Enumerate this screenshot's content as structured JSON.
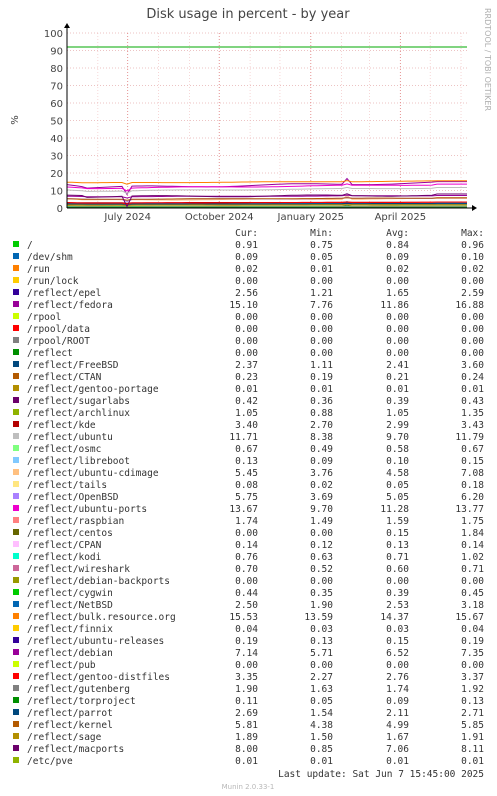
{
  "chart_data": {
    "type": "line",
    "title": "Disk usage in percent - by year",
    "ylabel": "%",
    "side_label": "RRDTOOL / TOBI OETIKER",
    "ylim": [
      0,
      100
    ],
    "yticks": [
      0,
      10,
      20,
      30,
      40,
      50,
      60,
      70,
      80,
      90,
      100
    ],
    "x_range": [
      "2024-05-01",
      "2025-06-07"
    ],
    "xticks": [
      {
        "label": "July 2024",
        "date": "2024-07-01"
      },
      {
        "label": "October 2024",
        "date": "2024-10-01"
      },
      {
        "label": "January 2025",
        "date": "2025-01-01"
      },
      {
        "label": "April 2025",
        "date": "2025-04-01"
      }
    ],
    "warning_line": 92,
    "grid": true,
    "columns": [
      "Cur:",
      "Min:",
      "Avg:",
      "Max:"
    ],
    "series": [
      {
        "name": "/",
        "color": "#00cc00",
        "values": [
          "0.91",
          "0.75",
          "0.84",
          "0.96"
        ]
      },
      {
        "name": "/dev/shm",
        "color": "#0066b3",
        "values": [
          "0.09",
          "0.05",
          "0.09",
          "0.10"
        ]
      },
      {
        "name": "/run",
        "color": "#ff8000",
        "values": [
          "0.02",
          "0.01",
          "0.02",
          "0.02"
        ]
      },
      {
        "name": "/run/lock",
        "color": "#ffcc00",
        "values": [
          "0.00",
          "0.00",
          "0.00",
          "0.00"
        ]
      },
      {
        "name": "/reflect/epel",
        "color": "#330099",
        "values": [
          "2.56",
          "1.21",
          "1.65",
          "2.59"
        ]
      },
      {
        "name": "/reflect/fedora",
        "color": "#990099",
        "values": [
          "15.10",
          "7.76",
          "11.86",
          "16.88"
        ]
      },
      {
        "name": "/rpool",
        "color": "#ccff00",
        "values": [
          "0.00",
          "0.00",
          "0.00",
          "0.00"
        ]
      },
      {
        "name": "/rpool/data",
        "color": "#ff0000",
        "values": [
          "0.00",
          "0.00",
          "0.00",
          "0.00"
        ]
      },
      {
        "name": "/rpool/ROOT",
        "color": "#808080",
        "values": [
          "0.00",
          "0.00",
          "0.00",
          "0.00"
        ]
      },
      {
        "name": "/reflect",
        "color": "#008f00",
        "values": [
          "0.00",
          "0.00",
          "0.00",
          "0.00"
        ]
      },
      {
        "name": "/reflect/FreeBSD",
        "color": "#00487d",
        "values": [
          "2.37",
          "1.11",
          "2.41",
          "3.60"
        ]
      },
      {
        "name": "/reflect/CTAN",
        "color": "#b35a00",
        "values": [
          "0.23",
          "0.19",
          "0.21",
          "0.24"
        ]
      },
      {
        "name": "/reflect/gentoo-portage",
        "color": "#b38f00",
        "values": [
          "0.01",
          "0.01",
          "0.01",
          "0.01"
        ]
      },
      {
        "name": "/reflect/sugarlabs",
        "color": "#6b006b",
        "values": [
          "0.42",
          "0.36",
          "0.39",
          "0.43"
        ]
      },
      {
        "name": "/reflect/archlinux",
        "color": "#8fb300",
        "values": [
          "1.05",
          "0.88",
          "1.05",
          "1.35"
        ]
      },
      {
        "name": "/reflect/kde",
        "color": "#b30000",
        "values": [
          "3.40",
          "2.70",
          "2.99",
          "3.43"
        ]
      },
      {
        "name": "/reflect/ubuntu",
        "color": "#bebebe",
        "values": [
          "11.71",
          "8.38",
          "9.70",
          "11.79"
        ]
      },
      {
        "name": "/reflect/osmc",
        "color": "#80ff80",
        "values": [
          "0.67",
          "0.49",
          "0.58",
          "0.67"
        ]
      },
      {
        "name": "/reflect/libreboot",
        "color": "#80c9ff",
        "values": [
          "0.13",
          "0.09",
          "0.10",
          "0.15"
        ]
      },
      {
        "name": "/reflect/ubuntu-cdimage",
        "color": "#ffc080",
        "values": [
          "5.45",
          "3.76",
          "4.58",
          "7.08"
        ]
      },
      {
        "name": "/reflect/tails",
        "color": "#ffe680",
        "values": [
          "0.08",
          "0.02",
          "0.05",
          "0.18"
        ]
      },
      {
        "name": "/reflect/OpenBSD",
        "color": "#aa80ff",
        "values": [
          "5.75",
          "3.69",
          "5.05",
          "6.20"
        ]
      },
      {
        "name": "/reflect/ubuntu-ports",
        "color": "#ee00cc",
        "values": [
          "13.67",
          "9.70",
          "11.28",
          "13.77"
        ]
      },
      {
        "name": "/reflect/raspbian",
        "color": "#ff8080",
        "values": [
          "1.74",
          "1.49",
          "1.59",
          "1.75"
        ]
      },
      {
        "name": "/reflect/centos",
        "color": "#666600",
        "values": [
          "0.00",
          "0.00",
          "0.15",
          "1.84"
        ]
      },
      {
        "name": "/reflect/CPAN",
        "color": "#ffbfff",
        "values": [
          "0.14",
          "0.12",
          "0.13",
          "0.14"
        ]
      },
      {
        "name": "/reflect/kodi",
        "color": "#00ffcc",
        "values": [
          "0.76",
          "0.63",
          "0.71",
          "1.02"
        ]
      },
      {
        "name": "/reflect/wireshark",
        "color": "#cc6699",
        "values": [
          "0.70",
          "0.52",
          "0.60",
          "0.71"
        ]
      },
      {
        "name": "/reflect/debian-backports",
        "color": "#999900",
        "values": [
          "0.00",
          "0.00",
          "0.00",
          "0.00"
        ]
      },
      {
        "name": "/reflect/cygwin",
        "color": "#00cc00",
        "values": [
          "0.44",
          "0.35",
          "0.39",
          "0.45"
        ]
      },
      {
        "name": "/reflect/NetBSD",
        "color": "#0066b3",
        "values": [
          "2.50",
          "1.90",
          "2.53",
          "3.18"
        ]
      },
      {
        "name": "/reflect/bulk.resource.org",
        "color": "#ff8000",
        "values": [
          "15.53",
          "13.59",
          "14.37",
          "15.67"
        ]
      },
      {
        "name": "/reflect/finnix",
        "color": "#ffcc00",
        "values": [
          "0.04",
          "0.03",
          "0.03",
          "0.04"
        ]
      },
      {
        "name": "/reflect/ubuntu-releases",
        "color": "#330099",
        "values": [
          "0.19",
          "0.13",
          "0.15",
          "0.19"
        ]
      },
      {
        "name": "/reflect/debian",
        "color": "#990099",
        "values": [
          "7.14",
          "5.71",
          "6.52",
          "7.35"
        ]
      },
      {
        "name": "/reflect/pub",
        "color": "#ccff00",
        "values": [
          "0.00",
          "0.00",
          "0.00",
          "0.00"
        ]
      },
      {
        "name": "/reflect/gentoo-distfiles",
        "color": "#ff0000",
        "values": [
          "3.35",
          "2.27",
          "2.76",
          "3.37"
        ]
      },
      {
        "name": "/reflect/gutenberg",
        "color": "#808080",
        "values": [
          "1.90",
          "1.63",
          "1.74",
          "1.92"
        ]
      },
      {
        "name": "/reflect/torproject",
        "color": "#008f00",
        "values": [
          "0.11",
          "0.05",
          "0.09",
          "0.13"
        ]
      },
      {
        "name": "/reflect/parrot",
        "color": "#00487d",
        "values": [
          "2.69",
          "1.54",
          "2.11",
          "2.71"
        ]
      },
      {
        "name": "/reflect/kernel",
        "color": "#b35a00",
        "values": [
          "5.81",
          "4.38",
          "4.99",
          "5.85"
        ]
      },
      {
        "name": "/reflect/sage",
        "color": "#b38f00",
        "values": [
          "1.89",
          "1.50",
          "1.67",
          "1.91"
        ]
      },
      {
        "name": "/reflect/macports",
        "color": "#6b006b",
        "values": [
          "8.00",
          "0.85",
          "7.06",
          "8.11"
        ]
      },
      {
        "name": "/etc/pve",
        "color": "#8fb300",
        "values": [
          "0.01",
          "0.01",
          "0.01",
          "0.01"
        ]
      }
    ]
  },
  "footer": {
    "last_update": "Last update:  Sat Jun  7 15:45:00 2025",
    "munin": "Munin 2.0.33-1"
  }
}
